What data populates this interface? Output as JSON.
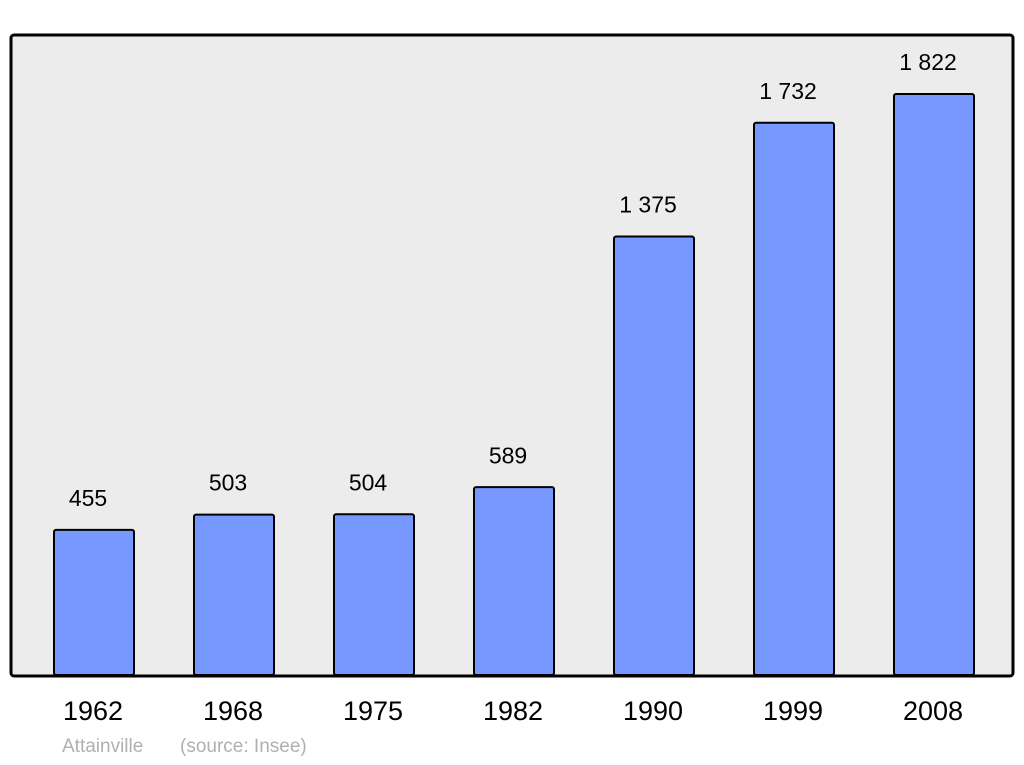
{
  "chart_data": {
    "type": "bar",
    "categories": [
      "1962",
      "1968",
      "1975",
      "1982",
      "1990",
      "1999",
      "2008"
    ],
    "values": [
      455,
      503,
      504,
      589,
      1375,
      1732,
      1822
    ],
    "value_labels": [
      "455",
      "503",
      "504",
      "589",
      "1 375",
      "1 732",
      "1 822"
    ],
    "color": "#7799ff",
    "caption": "Attainville",
    "source": "(source: Insee)"
  }
}
